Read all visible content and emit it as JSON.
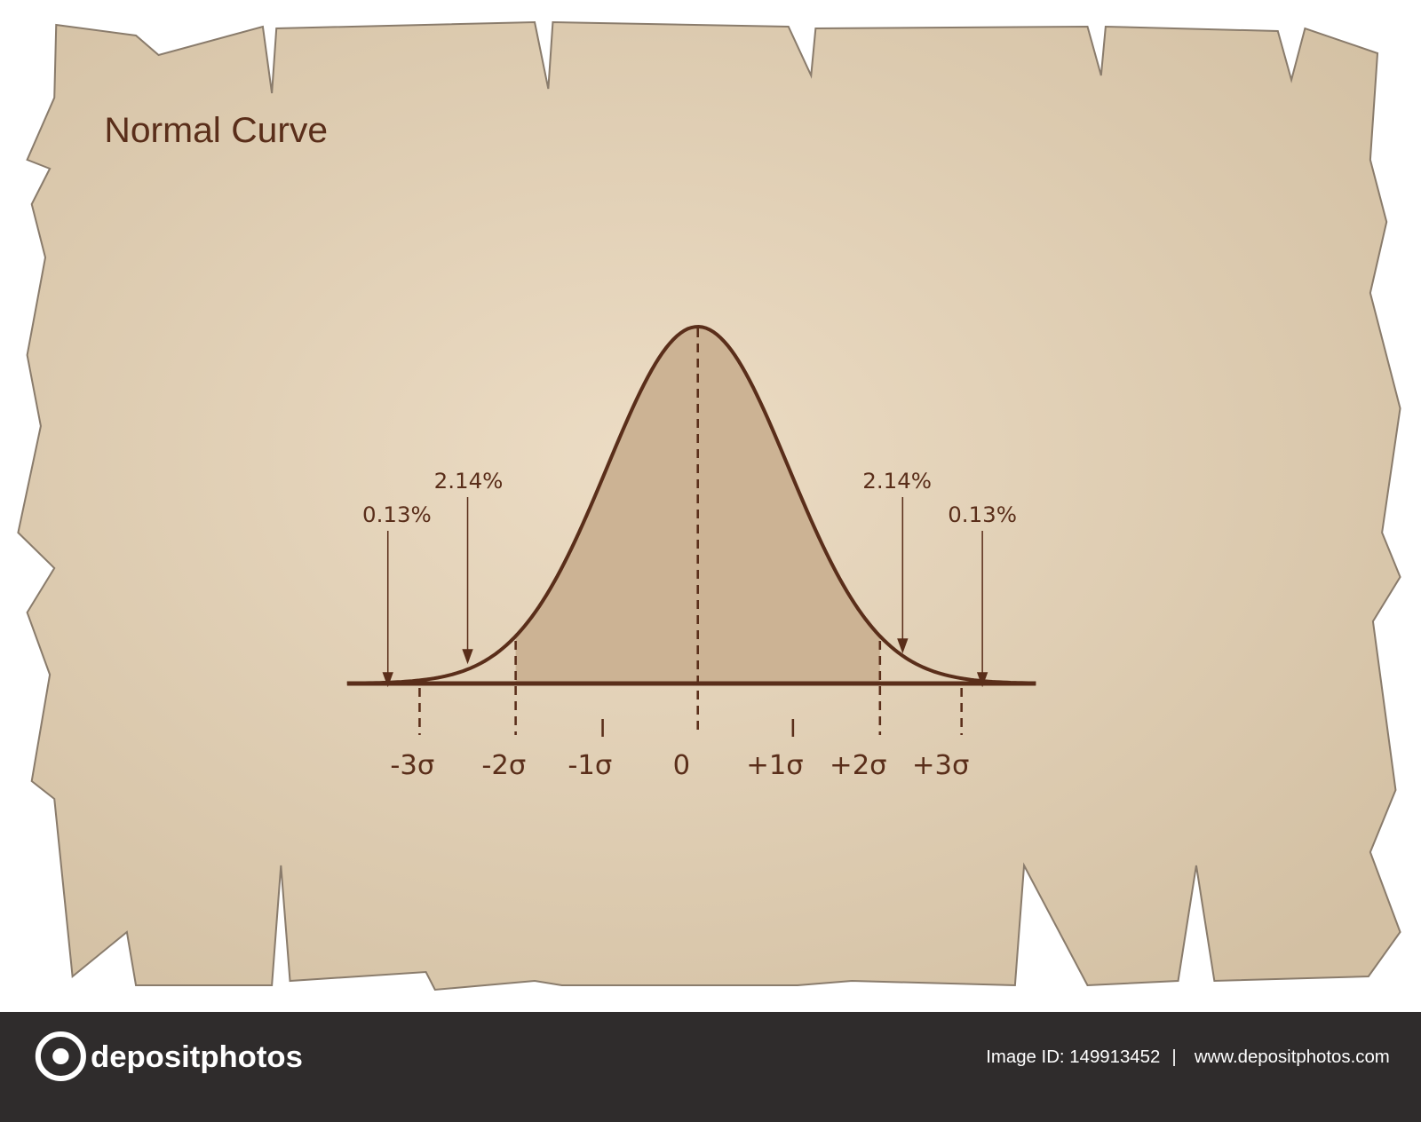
{
  "title": "Normal Curve",
  "annotations": [
    "0.13%",
    "2.14%",
    "2.14%",
    "0.13%"
  ],
  "axis_labels": [
    "-3σ",
    "-2σ",
    "-1σ",
    "0",
    "+1σ",
    "+2σ",
    "+3σ"
  ],
  "footer": {
    "logo": "depositphotos",
    "image_id": "Image ID: 149913452",
    "separator": "|",
    "url": "www.depositphotos.com"
  }
}
